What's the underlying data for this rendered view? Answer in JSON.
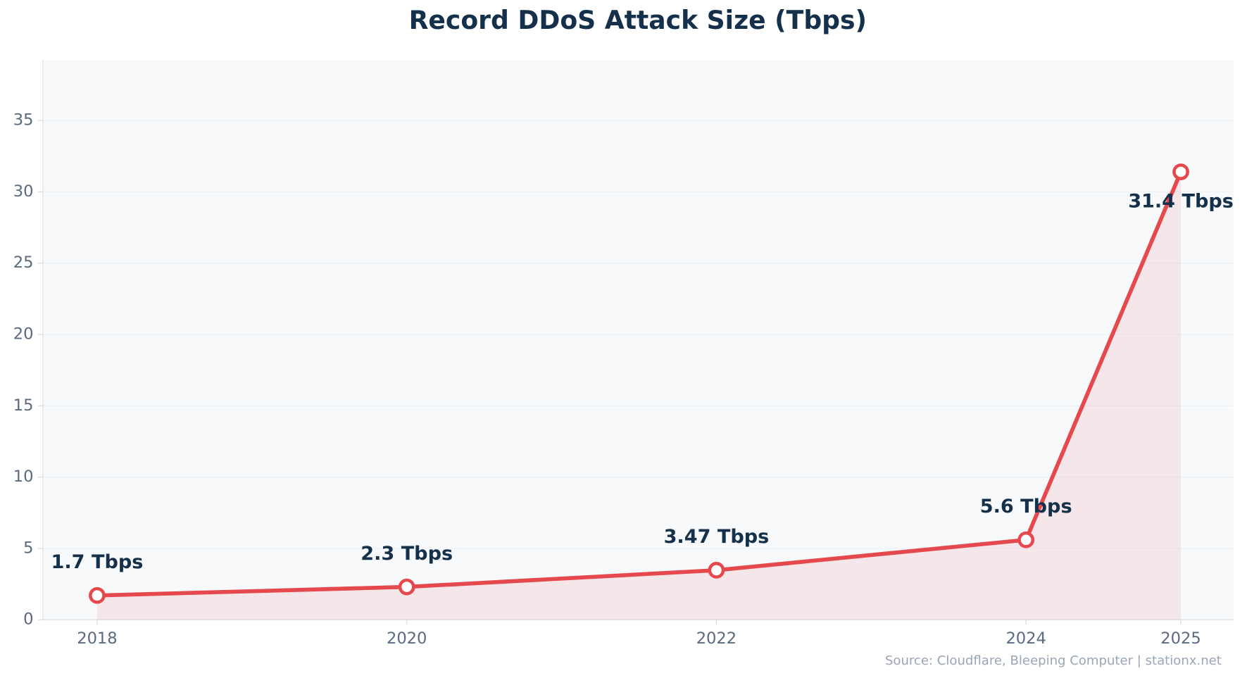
{
  "chart_data": {
    "type": "line",
    "title": "Record DDoS Attack Size (Tbps)",
    "x": [
      2018,
      2020,
      2022,
      2024,
      2025
    ],
    "values": [
      1.7,
      2.3,
      3.47,
      5.6,
      31.4
    ],
    "value_labels": [
      "1.7 Tbps",
      "2.3 Tbps",
      "3.47 Tbps",
      "5.6 Tbps",
      "31.4 Tbps"
    ],
    "color": "#e5484d",
    "xlim": [
      2017.65,
      2025.34
    ],
    "ylim": [
      0,
      39.25
    ],
    "xticks": [
      2018,
      2020,
      2022,
      2024,
      2025
    ],
    "yticks": [
      0,
      5,
      10,
      15,
      20,
      25,
      30,
      35
    ],
    "grid": true,
    "source": "Source: Cloudflare, Bleeping Computer | stationx.net"
  }
}
